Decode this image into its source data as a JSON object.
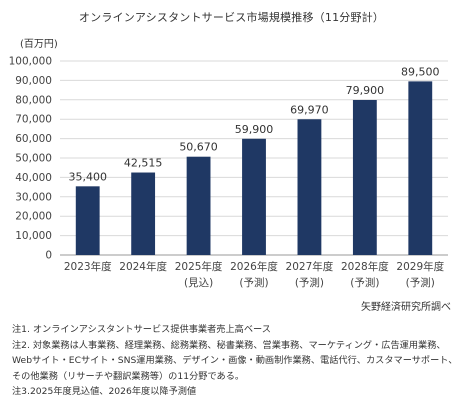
{
  "chart_data": {
    "type": "bar",
    "title": "オンラインアシスタントサービス市場規模推移（11分野計）",
    "ylabel": "(百万円)",
    "ylim": [
      0,
      100000
    ],
    "yticks": [
      "0",
      "10,000",
      "20,000",
      "30,000",
      "40,000",
      "50,000",
      "60,000",
      "70,000",
      "80,000",
      "90,000",
      "100,000"
    ],
    "categories": [
      "2023年度",
      "2024年度",
      "2025年度",
      "2026年度",
      "2027年度",
      "2028年度",
      "2029年度"
    ],
    "sublabels": [
      "",
      "",
      "(見込)",
      "(予測)",
      "(予測)",
      "(予測)",
      "(予測)"
    ],
    "values": [
      35400,
      42515,
      50670,
      59900,
      69970,
      79900,
      89500
    ],
    "value_labels": [
      "35,400",
      "42,515",
      "50,670",
      "59,900",
      "69,970",
      "79,900",
      "89,500"
    ],
    "grid": true,
    "bar_color": "#1f3864"
  },
  "source": "矢野経済研究所調べ",
  "notes": [
    "注1. オンラインアシスタントサービス提供事業者売上高ベース",
    "注2. 対象業務は人事業務、経理業務、総務業務、秘書業務、営業事務、マーケティング・広告運用業務、Webサイト・ECサイト・SNS運用業務、デザイン・画像・動画制作業務、電話代行、カスタマーサポート、その他業務（リサーチや翻訳業務等）の11分野である。",
    "注3.2025年度見込値、2026年度以降予測値"
  ]
}
